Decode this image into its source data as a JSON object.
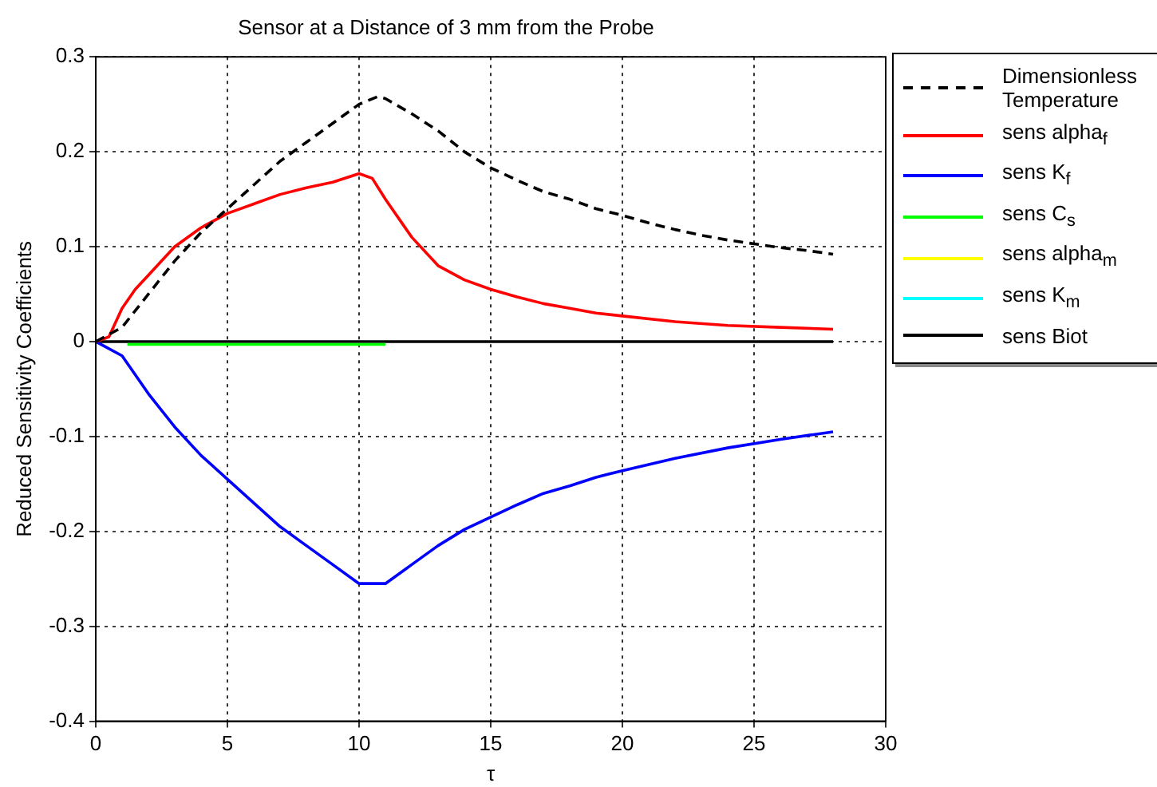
{
  "chart_data": {
    "type": "line",
    "title": "Sensor at a Distance of 3 mm from the Probe",
    "xlabel": "τ",
    "ylabel": "Reduced Sensitivity Coefficients",
    "xlim": [
      0,
      30
    ],
    "xticks": [
      0,
      5,
      10,
      15,
      20,
      25,
      30
    ],
    "ylim": [
      -0.4,
      0.3
    ],
    "yticks": [
      -0.4,
      -0.3,
      -0.2,
      -0.1,
      0,
      0.1,
      0.2,
      0.3
    ],
    "grid": true,
    "legend": "right",
    "marker": "none",
    "series": [
      {
        "name": "Dimensionless Temperature",
        "color": "#000000",
        "line_style": "dashed",
        "x": [
          0,
          1,
          2,
          3,
          4,
          5,
          6,
          7,
          8,
          9,
          10,
          10.7,
          11,
          12,
          13,
          14,
          15,
          16,
          17,
          18,
          19,
          20,
          21,
          22,
          23,
          24,
          25,
          26,
          27,
          28
        ],
        "values": [
          0,
          0.015,
          0.05,
          0.085,
          0.115,
          0.14,
          0.165,
          0.19,
          0.21,
          0.23,
          0.25,
          0.258,
          0.256,
          0.24,
          0.222,
          0.2,
          0.183,
          0.17,
          0.158,
          0.15,
          0.14,
          0.133,
          0.125,
          0.118,
          0.112,
          0.107,
          0.103,
          0.099,
          0.096,
          0.092
        ]
      },
      {
        "name": "sens alpha$_{f}$",
        "color": "#ff0000",
        "line_style": "solid",
        "x": [
          0,
          0.5,
          1,
          1.5,
          2,
          3,
          4,
          5,
          6,
          7,
          8,
          9,
          10,
          10.5,
          11,
          12,
          13,
          14,
          15,
          16,
          17,
          18,
          19,
          20,
          22,
          24,
          26,
          28
        ],
        "values": [
          0,
          0.005,
          0.035,
          0.055,
          0.07,
          0.1,
          0.12,
          0.135,
          0.145,
          0.155,
          0.162,
          0.168,
          0.177,
          0.172,
          0.15,
          0.11,
          0.08,
          0.065,
          0.055,
          0.047,
          0.04,
          0.035,
          0.03,
          0.027,
          0.021,
          0.017,
          0.015,
          0.013
        ]
      },
      {
        "name": "sens K$_{f}$",
        "color": "#0000ff",
        "line_style": "solid",
        "x": [
          0,
          1,
          2,
          3,
          4,
          5,
          6,
          7,
          8,
          9,
          10,
          11,
          12,
          13,
          14,
          15,
          16,
          17,
          18,
          19,
          20,
          22,
          24,
          26,
          28
        ],
        "values": [
          0,
          -0.015,
          -0.055,
          -0.09,
          -0.12,
          -0.145,
          -0.17,
          -0.195,
          -0.215,
          -0.235,
          -0.255,
          -0.255,
          -0.235,
          -0.215,
          -0.198,
          -0.185,
          -0.172,
          -0.16,
          -0.152,
          -0.143,
          -0.136,
          -0.123,
          -0.112,
          -0.103,
          -0.095
        ]
      },
      {
        "name": "sens C$_{s}$",
        "color": "#00ff00",
        "line_style": "solid",
        "x": [
          1.2,
          11
        ],
        "values": [
          -0.003,
          -0.003
        ]
      },
      {
        "name": "sens alpha$_{m}$",
        "color": "#ffff00",
        "line_style": "solid"
      },
      {
        "name": "sens K$_{m}$",
        "color": "#00ffff",
        "line_style": "solid"
      },
      {
        "name": "sens Biot",
        "color": "#000000",
        "line_style": "solid",
        "x": [
          0,
          28
        ],
        "values": [
          0,
          0
        ]
      }
    ]
  }
}
